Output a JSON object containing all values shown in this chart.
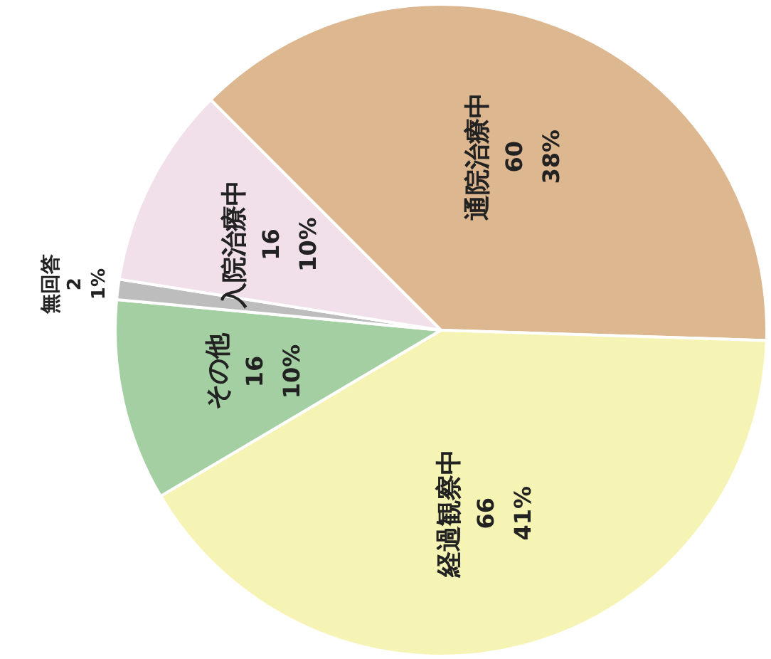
{
  "chart_data": {
    "type": "pie",
    "categories": [
      "通院治療中",
      "経過観察中",
      "その他",
      "無回答",
      "入院治療中"
    ],
    "values": [
      38,
      41,
      10,
      1,
      10
    ],
    "value_labels": [
      "60\n38%",
      "66\n41%",
      "16\n10%",
      "2\n1%",
      "16\n10%"
    ],
    "colors": [
      "#dcb78f",
      "#f6f4b4",
      "#a3cfa3",
      "#bdbdbd",
      "#f1e0ea"
    ],
    "legend": false
  }
}
